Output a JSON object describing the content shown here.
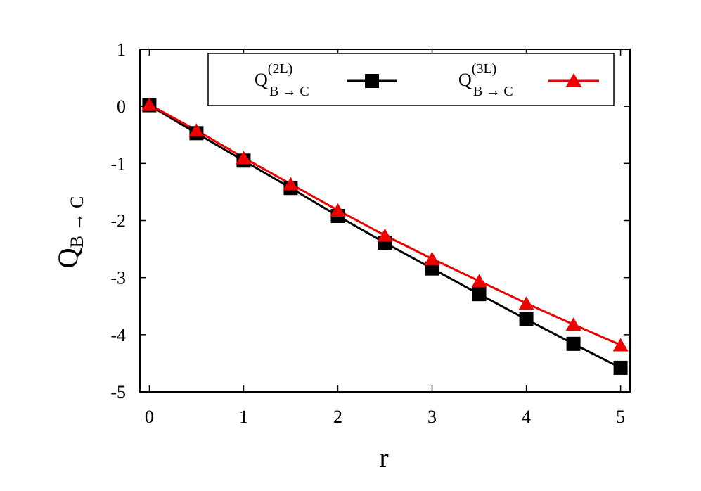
{
  "chart_data": {
    "type": "line",
    "xlabel": "r",
    "ylabel": {
      "main": "Q",
      "sub": "B → C"
    },
    "xlim": [
      -0.1,
      5.1
    ],
    "ylim": [
      -5,
      1
    ],
    "xticks": [
      "0",
      "1",
      "2",
      "3",
      "4",
      "5"
    ],
    "yticks": [
      "1",
      "0",
      "-1",
      "-2",
      "-3",
      "-4",
      "-5"
    ],
    "grid": false,
    "legend_position": "top",
    "x": [
      0,
      0.5,
      1,
      1.5,
      2,
      2.5,
      3,
      3.5,
      4,
      4.5,
      5
    ],
    "series": [
      {
        "name": {
          "main": "Q",
          "sup": "(2L)",
          "sub": "B → C"
        },
        "marker": "square",
        "color": "#000000",
        "values": [
          0.02,
          -0.47,
          -0.95,
          -1.43,
          -1.92,
          -2.39,
          -2.84,
          -3.29,
          -3.73,
          -4.16,
          -4.58
        ]
      },
      {
        "name": {
          "main": "Q",
          "sup": "(3L)",
          "sub": "B → C"
        },
        "marker": "triangle",
        "color": "#ee0000",
        "values": [
          0.03,
          -0.42,
          -0.9,
          -1.36,
          -1.82,
          -2.26,
          -2.67,
          -3.06,
          -3.45,
          -3.82,
          -4.18
        ]
      }
    ]
  }
}
